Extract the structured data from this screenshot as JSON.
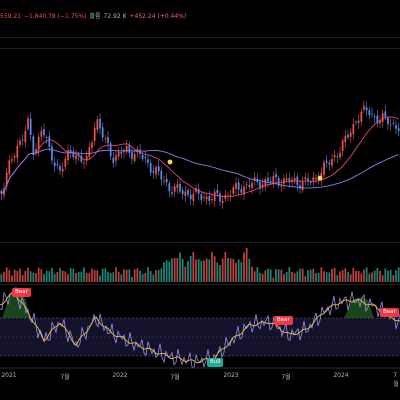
{
  "legend": {
    "open_partial": "559.21",
    "change": "−1,840.78 (−1.75%)",
    "volume_label": "볼륨",
    "volume_value": "72.92 K",
    "volume_change": "+452.24 (+0.44%)"
  },
  "time_axis": {
    "labels": [
      "2021",
      "7월",
      "2022",
      "7월",
      "2023",
      "7월",
      "2024",
      "7월"
    ]
  },
  "signals": [
    {
      "type": "bear",
      "label": "Bear"
    },
    {
      "type": "bear",
      "label": "Bear"
    },
    {
      "type": "bear",
      "label": "Bear"
    },
    {
      "type": "bull",
      "label": "Bull"
    }
  ],
  "colors": {
    "background": "#000000",
    "up_candle": "#ef5350",
    "down_candle": "#5b8def",
    "ma_fast": "#e0457b",
    "ma_slow": "#8e7cf0",
    "oscillator_fast": "#e5c33a",
    "oscillator_slow": "#9b8cf2",
    "cross_marker": "#ffd54f",
    "bear_tag": "#f23645",
    "bull_tag": "#22ab94"
  }
}
